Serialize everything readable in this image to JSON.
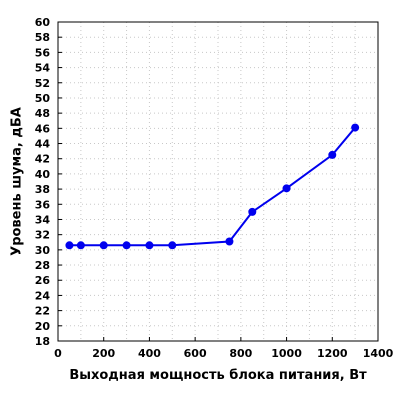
{
  "chart_data": {
    "type": "line",
    "xlabel": "Выходная мощность блока питания, Вт",
    "ylabel": "Уровень шума, дБА",
    "xlim": [
      0,
      1400
    ],
    "ylim": [
      18,
      60
    ],
    "xticks": [
      0,
      200,
      400,
      600,
      800,
      1000,
      1200,
      1400
    ],
    "yticks": [
      18,
      20,
      22,
      24,
      26,
      28,
      30,
      32,
      34,
      36,
      38,
      40,
      42,
      44,
      46,
      48,
      50,
      52,
      54,
      56,
      58,
      60
    ],
    "grid": true,
    "series": [
      {
        "color": "#0000ee",
        "x": [
          50,
          100,
          200,
          300,
          400,
          500,
          750,
          850,
          1000,
          1200,
          1300
        ],
        "y": [
          30.6,
          30.6,
          30.6,
          30.6,
          30.6,
          30.6,
          31.1,
          35.0,
          38.1,
          42.5,
          46.1
        ]
      }
    ]
  }
}
